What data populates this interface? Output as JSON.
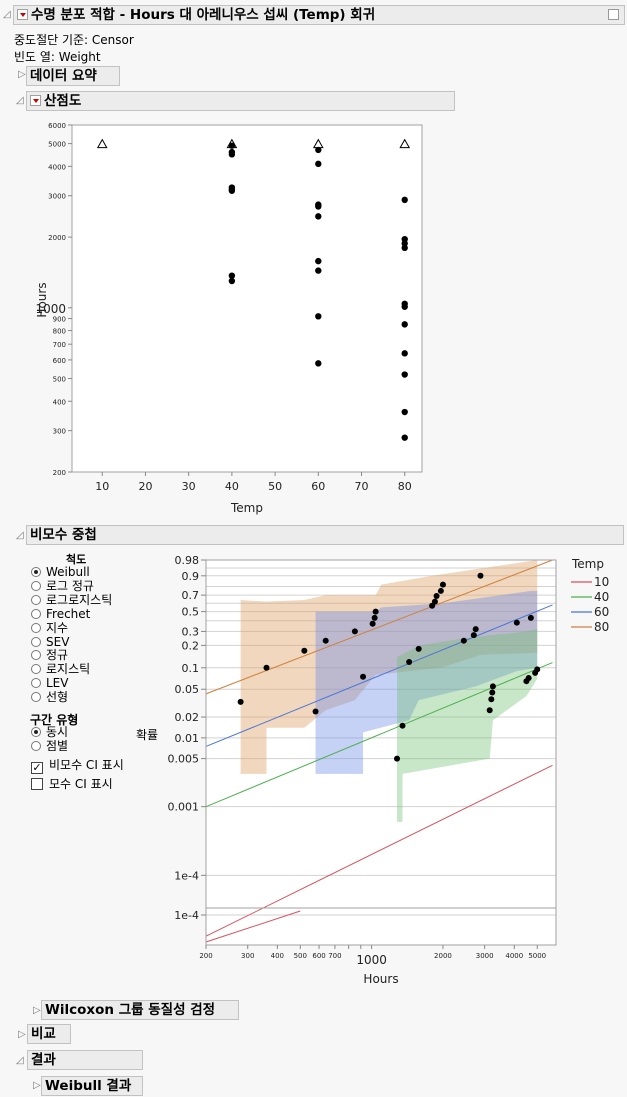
{
  "report": {
    "title": "수명 분포 적합 - Hours 대 아레니우스 섭씨 (Temp) 회귀",
    "censor_label": "중도절단 기준: Censor",
    "freq_label": "빈도 열: Weight"
  },
  "sections": {
    "data_summary": "데이터 요약",
    "scatter": "산점도",
    "nonparam_overlay": "비모수 중첩",
    "wilcoxon": "Wilcoxon 그룹 동질성 검정",
    "compare": "비교",
    "results": "결과",
    "weibull_results": "Weibull 결과"
  },
  "controls": {
    "scale_title": "척도",
    "scales": [
      {
        "label": "Weibull",
        "selected": true
      },
      {
        "label": "로그 정규",
        "selected": false
      },
      {
        "label": "로그로지스틱",
        "selected": false
      },
      {
        "label": "Frechet",
        "selected": false
      },
      {
        "label": "지수",
        "selected": false
      },
      {
        "label": "SEV",
        "selected": false
      },
      {
        "label": "정규",
        "selected": false
      },
      {
        "label": "로지스틱",
        "selected": false
      },
      {
        "label": "LEV",
        "selected": false
      },
      {
        "label": "선형",
        "selected": false
      }
    ],
    "interval_title": "구간 유형",
    "intervals": [
      {
        "label": "동시",
        "selected": true
      },
      {
        "label": "점별",
        "selected": false
      }
    ],
    "show_np_ci": {
      "label": "비모수 CI 표시",
      "checked": true
    },
    "show_param_ci": {
      "label": "모수 CI 표시",
      "checked": false
    }
  },
  "chart_data": [
    {
      "type": "scatter",
      "title": "산점도",
      "xlabel": "Temp",
      "ylabel": "Hours",
      "xlim": [
        3,
        84
      ],
      "ylim": [
        200,
        6000
      ],
      "yscale": "log",
      "xticks": [
        10,
        20,
        30,
        40,
        50,
        60,
        70,
        80
      ],
      "yticks": [
        200,
        300,
        400,
        500,
        600,
        700,
        800,
        900,
        1000,
        2000,
        3000,
        4000,
        5000,
        6000
      ],
      "failures": [
        {
          "x": 40,
          "y": 4900
        },
        {
          "x": 40,
          "y": 4600
        },
        {
          "x": 40,
          "y": 4500
        },
        {
          "x": 40,
          "y": 3250
        },
        {
          "x": 40,
          "y": 3200
        },
        {
          "x": 40,
          "y": 3150
        },
        {
          "x": 40,
          "y": 1370
        },
        {
          "x": 40,
          "y": 1300
        },
        {
          "x": 60,
          "y": 4700
        },
        {
          "x": 60,
          "y": 4100
        },
        {
          "x": 60,
          "y": 2750
        },
        {
          "x": 60,
          "y": 2700
        },
        {
          "x": 60,
          "y": 2450
        },
        {
          "x": 60,
          "y": 1580
        },
        {
          "x": 60,
          "y": 1440
        },
        {
          "x": 60,
          "y": 920
        },
        {
          "x": 60,
          "y": 580
        },
        {
          "x": 80,
          "y": 2880
        },
        {
          "x": 80,
          "y": 1960
        },
        {
          "x": 80,
          "y": 1880
        },
        {
          "x": 80,
          "y": 1800
        },
        {
          "x": 80,
          "y": 1040
        },
        {
          "x": 80,
          "y": 1010
        },
        {
          "x": 80,
          "y": 850
        },
        {
          "x": 80,
          "y": 640
        },
        {
          "x": 80,
          "y": 520
        },
        {
          "x": 80,
          "y": 360
        },
        {
          "x": 80,
          "y": 280
        }
      ],
      "censored": [
        {
          "x": 10,
          "y": 5000
        },
        {
          "x": 40,
          "y": 5000
        },
        {
          "x": 60,
          "y": 5000
        },
        {
          "x": 80,
          "y": 5000
        }
      ]
    },
    {
      "type": "line",
      "title": "비모수 중첩",
      "xlabel": "Hours",
      "ylabel": "확률",
      "xscale": "log",
      "yscale": "weibull",
      "xlim": [
        200,
        6000
      ],
      "xticks": [
        200,
        300,
        400,
        500,
        600,
        700,
        1000,
        2000,
        3000,
        4000,
        5000
      ],
      "yticks": [
        "0.98",
        "0.9",
        "0.7",
        "0.5",
        "0.3",
        "0.2",
        "0.1",
        "0.05",
        "0.02",
        "0.01",
        "0.005",
        "0.001",
        "1e-4"
      ],
      "legend": {
        "title": "Temp",
        "position": "right"
      },
      "series": [
        {
          "name": "10",
          "color": "#d8505c",
          "line": [
            [
              200,
              1.3e-05
            ],
            [
              5800,
              0.004
            ]
          ]
        },
        {
          "name": "40",
          "color": "#4cb04c",
          "line": [
            [
              200,
              0.001
            ],
            [
              5800,
              0.118
            ]
          ],
          "points": [
            [
              1280,
              0.005
            ],
            [
              1350,
              0.015
            ],
            [
              3150,
              0.025
            ],
            [
              3200,
              0.036
            ],
            [
              3230,
              0.045
            ],
            [
              3250,
              0.055
            ],
            [
              4500,
              0.065
            ],
            [
              4600,
              0.072
            ],
            [
              4900,
              0.085
            ],
            [
              5000,
              0.095
            ]
          ]
        },
        {
          "name": "60",
          "color": "#4a74d8",
          "line": [
            [
              200,
              0.0075
            ],
            [
              5800,
              0.58
            ]
          ],
          "points": [
            [
              580,
              0.024
            ],
            [
              920,
              0.075
            ],
            [
              1440,
              0.12
            ],
            [
              1580,
              0.18
            ],
            [
              2450,
              0.23
            ],
            [
              2700,
              0.27
            ],
            [
              2750,
              0.32
            ],
            [
              4100,
              0.38
            ],
            [
              4700,
              0.43
            ]
          ]
        },
        {
          "name": "80",
          "color": "#d0803a",
          "line": [
            [
              200,
              0.043
            ],
            [
              5800,
              0.98
            ]
          ],
          "points": [
            [
              280,
              0.033
            ],
            [
              360,
              0.1
            ],
            [
              520,
              0.17
            ],
            [
              640,
              0.23
            ],
            [
              850,
              0.3
            ],
            [
              1010,
              0.37
            ],
            [
              1030,
              0.43
            ],
            [
              1040,
              0.5
            ],
            [
              1800,
              0.57
            ],
            [
              1850,
              0.62
            ],
            [
              1880,
              0.69
            ],
            [
              1960,
              0.75
            ],
            [
              2000,
              0.82
            ],
            [
              2880,
              0.9
            ]
          ]
        }
      ]
    }
  ]
}
